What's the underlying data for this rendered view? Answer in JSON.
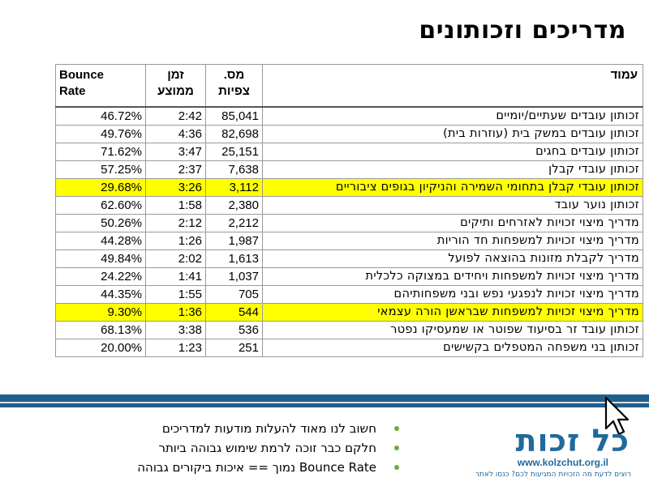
{
  "title": "מדריכים וזכותונים",
  "table": {
    "headers": {
      "bounce": [
        "Bounce",
        "Rate"
      ],
      "avg_time": [
        "זמן",
        "ממוצע"
      ],
      "views": [
        "מס.",
        "צפיות"
      ],
      "page": "עמוד"
    },
    "rows": [
      {
        "bounce": "46.72%",
        "time": "2:42",
        "views": "85,041",
        "page": "זכותון עובדים שעתיים/יומיים",
        "highlight": false
      },
      {
        "bounce": "49.76%",
        "time": "4:36",
        "views": "82,698",
        "page": "זכותון עובדים במשק בית (עוזרות בית)",
        "highlight": false
      },
      {
        "bounce": "71.62%",
        "time": "3:47",
        "views": "25,151",
        "page": "זכותון עובדים בחגים",
        "highlight": false
      },
      {
        "bounce": "57.25%",
        "time": "2:37",
        "views": "7,638",
        "page": "זכותון עובדי קבלן",
        "highlight": false
      },
      {
        "bounce": "29.68%",
        "time": "3:26",
        "views": "3,112",
        "page": "זכותון עובדי קבלן בתחומי השמירה והניקיון בגופים ציבוריים",
        "highlight": true
      },
      {
        "bounce": "62.60%",
        "time": "1:58",
        "views": "2,380",
        "page": "זכותון נוער עובד",
        "highlight": false
      },
      {
        "bounce": "50.26%",
        "time": "2:12",
        "views": "2,212",
        "page": "מדריך מיצוי זכויות לאזרחים ותיקים",
        "highlight": false
      },
      {
        "bounce": "44.28%",
        "time": "1:26",
        "views": "1,987",
        "page": "מדריך מיצוי זכויות למשפחות חד הוריות",
        "highlight": false
      },
      {
        "bounce": "49.84%",
        "time": "2:02",
        "views": "1,613",
        "page": "מדריך לקבלת מזונות בהוצאה לפועל",
        "highlight": false
      },
      {
        "bounce": "24.22%",
        "time": "1:41",
        "views": "1,037",
        "page": "מדריך מיצוי זכויות למשפחות ויחידים במצוקה כלכלית",
        "highlight": false
      },
      {
        "bounce": "44.35%",
        "time": "1:55",
        "views": "705",
        "page": "מדריך מיצוי זכויות לנפגעי נפש ובני משפחותיהם",
        "highlight": false
      },
      {
        "bounce": "9.30%",
        "time": "1:36",
        "views": "544",
        "page": "מדריך מיצוי זכויות למשפחות שבראשן הורה עצמאי",
        "highlight": true
      },
      {
        "bounce": "68.13%",
        "time": "3:38",
        "views": "536",
        "page": "זכותון עובד זר בסיעוד שפוטר או שמעסיקו נפטר",
        "highlight": false
      },
      {
        "bounce": "20.00%",
        "time": "1:23",
        "views": "251",
        "page": "זכותון בני משפחה המטפלים בקשישים",
        "highlight": false
      }
    ]
  },
  "bullets": [
    "חשוב לנו מאוד להעלות מודעות למדריכים",
    "חלקם כבר זוכה לרמת שימוש גבוהה ביותר",
    "Bounce Rate נמוך == איכות ביקורים גבוהה"
  ],
  "logo": {
    "brand": "כל זכות",
    "url": "www.kolzchut.org.il",
    "tagline": "רוצים לדעת מה הזכויות המגיעות לכם? כנסו לאתר"
  },
  "colors": {
    "highlight": "#ffff00",
    "footer_band": "#1f5f8e",
    "brand": "#1e6a9c",
    "bullet": "#6ea843"
  },
  "icons": [
    "mouse-pointer-icon",
    "bullet-dot-icon"
  ]
}
